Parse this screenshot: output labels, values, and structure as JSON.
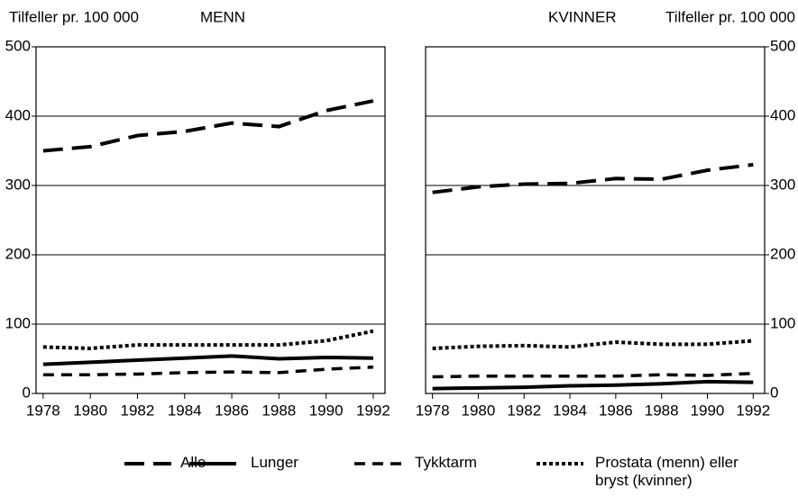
{
  "chart_data": [
    {
      "type": "line",
      "title": "MENN",
      "ylabel": "Tilfeller pr. 100 000",
      "yaxis_side": "left",
      "x": [
        1978,
        1980,
        1982,
        1984,
        1986,
        1988,
        1990,
        1992
      ],
      "xlim": [
        1977.7,
        1992.5
      ],
      "xticks": [
        1978,
        1980,
        1982,
        1984,
        1986,
        1988,
        1990,
        1992
      ],
      "ylim": [
        0,
        500
      ],
      "yticks": [
        0,
        100,
        200,
        300,
        400,
        500
      ],
      "grid": true,
      "series": [
        {
          "name": "Alle",
          "color": "#000000",
          "dash": "22 10",
          "width": 4,
          "values": [
            350,
            356,
            372,
            378,
            390,
            385,
            408,
            422
          ]
        },
        {
          "name": "Lunger",
          "color": "#000000",
          "dash": "none",
          "width": 4,
          "values": [
            42,
            45,
            48,
            51,
            54,
            50,
            52,
            51
          ]
        },
        {
          "name": "Tykktarm",
          "color": "#000000",
          "dash": "12 8",
          "width": 3.5,
          "values": [
            27,
            27,
            28,
            30,
            31,
            30,
            35,
            38
          ]
        },
        {
          "name": "Prostata (menn) eller bryst (kvinner)",
          "color": "#000000",
          "dash": "4 3",
          "width": 4,
          "values": [
            67,
            65,
            70,
            70,
            70,
            70,
            76,
            90
          ]
        }
      ]
    },
    {
      "type": "line",
      "title": "KVINNER",
      "ylabel": "Tilfeller pr. 100 000",
      "yaxis_side": "right",
      "x": [
        1978,
        1980,
        1982,
        1984,
        1986,
        1988,
        1990,
        1992
      ],
      "xlim": [
        1977.7,
        1992.5
      ],
      "xticks": [
        1978,
        1980,
        1982,
        1984,
        1986,
        1988,
        1990,
        1992
      ],
      "ylim": [
        0,
        500
      ],
      "yticks": [
        0,
        100,
        200,
        300,
        400,
        500
      ],
      "grid": true,
      "series": [
        {
          "color": "#000000",
          "dash": "22 10",
          "width": 4,
          "values": [
            290,
            298,
            302,
            303,
            310,
            309,
            322,
            330
          ]
        },
        {
          "color": "#000000",
          "dash": "none",
          "width": 4,
          "values": [
            7,
            8,
            9,
            11,
            12,
            14,
            17,
            16
          ]
        },
        {
          "color": "#000000",
          "dash": "12 8",
          "width": 3.5,
          "values": [
            24,
            25,
            25,
            25,
            25,
            27,
            26,
            29
          ]
        },
        {
          "color": "#000000",
          "dash": "4 3",
          "width": 4,
          "values": [
            65,
            68,
            69,
            67,
            74,
            71,
            71,
            76
          ]
        }
      ]
    }
  ]
}
